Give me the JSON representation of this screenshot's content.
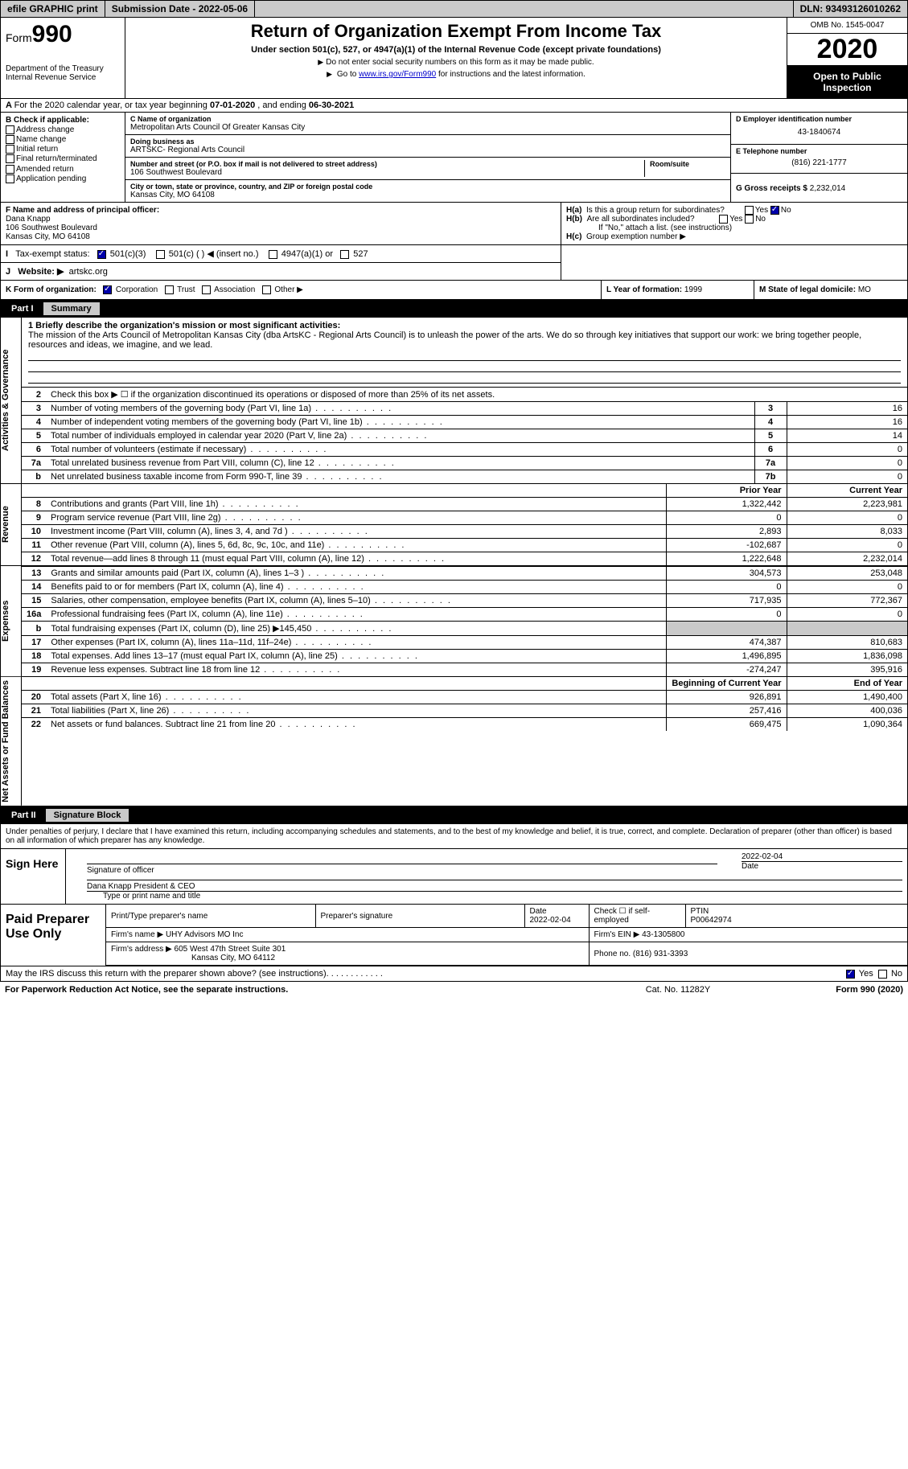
{
  "topbar": {
    "efile": "efile GRAPHIC print",
    "submission": "Submission Date - 2022-05-06",
    "dln": "DLN: 93493126010262"
  },
  "header": {
    "form_label": "Form",
    "form_num": "990",
    "dept": "Department of the Treasury\nInternal Revenue Service",
    "title": "Return of Organization Exempt From Income Tax",
    "sub": "Under section 501(c), 527, or 4947(a)(1) of the Internal Revenue Code (except private foundations)",
    "note1": "Do not enter social security numbers on this form as it may be made public.",
    "note2_pre": "Go to ",
    "note2_link": "www.irs.gov/Form990",
    "note2_post": " for instructions and the latest information.",
    "omb": "OMB No. 1545-0047",
    "year": "2020",
    "inspect": "Open to Public Inspection"
  },
  "line_a": {
    "text_pre": "For the 2020 calendar year, or tax year beginning ",
    "begin": "07-01-2020",
    "mid": " , and ending ",
    "end": "06-30-2021"
  },
  "col_b": {
    "hdr": "B Check if applicable:",
    "items": [
      "Address change",
      "Name change",
      "Initial return",
      "Final return/terminated",
      "Amended return",
      "Application pending"
    ]
  },
  "col_c": {
    "name_lbl": "C Name of organization",
    "name": "Metropolitan Arts Council Of Greater Kansas City",
    "dba_lbl": "Doing business as",
    "dba": "ARTSKC- Regional Arts Council",
    "addr_lbl": "Number and street (or P.O. box if mail is not delivered to street address)",
    "room_lbl": "Room/suite",
    "addr": "106 Southwest Boulevard",
    "city_lbl": "City or town, state or province, country, and ZIP or foreign postal code",
    "city": "Kansas City, MO  64108"
  },
  "col_d": {
    "ein_lbl": "D Employer identification number",
    "ein": "43-1840674",
    "tel_lbl": "E Telephone number",
    "tel": "(816) 221-1777",
    "gross_lbl": "G Gross receipts $",
    "gross": "2,232,014"
  },
  "section_f": {
    "lbl": "F Name and address of principal officer:",
    "name": "Dana Knapp",
    "addr": "106 Southwest Boulevard",
    "city": "Kansas City, MO  64108"
  },
  "section_h": {
    "ha": "Is this a group return for subordinates?",
    "hb": "Are all subordinates included?",
    "hb_note": "If \"No,\" attach a list. (see instructions)",
    "hc": "Group exemption number ▶"
  },
  "row_i": {
    "lbl": "Tax-exempt status:",
    "opt1": "501(c)(3)",
    "opt2": "501(c) (  ) ◀ (insert no.)",
    "opt3": "4947(a)(1) or",
    "opt4": "527"
  },
  "row_j": {
    "lbl": "Website: ▶",
    "val": "artskc.org"
  },
  "row_k": {
    "lbl": "K Form of organization:",
    "opts": [
      "Corporation",
      "Trust",
      "Association",
      "Other ▶"
    ]
  },
  "row_l": {
    "lbl": "L Year of formation:",
    "val": "1999"
  },
  "row_m": {
    "lbl": "M State of legal domicile:",
    "val": "MO"
  },
  "parts": {
    "p1": "Part I",
    "p1t": "Summary",
    "p2": "Part II",
    "p2t": "Signature Block"
  },
  "vtabs": {
    "gov": "Activities & Governance",
    "rev": "Revenue",
    "exp": "Expenses",
    "net": "Net Assets or Fund Balances"
  },
  "mission": {
    "lbl": "1  Briefly describe the organization's mission or most significant activities:",
    "text": "The mission of the Arts Council of Metropolitan Kansas City (dba ArtsKC - Regional Arts Council) is to unleash the power of the arts. We do so through key initiatives that support our work: we bring together people, resources and ideas, we imagine, and we lead."
  },
  "gov_rows": [
    {
      "n": "2",
      "t": "Check this box ▶ ☐  if the organization discontinued its operations or disposed of more than 25% of its net assets."
    },
    {
      "n": "3",
      "t": "Number of voting members of the governing body (Part VI, line 1a)",
      "box": "3",
      "v": "16"
    },
    {
      "n": "4",
      "t": "Number of independent voting members of the governing body (Part VI, line 1b)",
      "box": "4",
      "v": "16"
    },
    {
      "n": "5",
      "t": "Total number of individuals employed in calendar year 2020 (Part V, line 2a)",
      "box": "5",
      "v": "14"
    },
    {
      "n": "6",
      "t": "Total number of volunteers (estimate if necessary)",
      "box": "6",
      "v": "0"
    },
    {
      "n": "7a",
      "t": "Total unrelated business revenue from Part VIII, column (C), line 12",
      "box": "7a",
      "v": "0"
    },
    {
      "n": "b",
      "t": "Net unrelated business taxable income from Form 990-T, line 39",
      "box": "7b",
      "v": "0"
    }
  ],
  "fin_hdr": {
    "py": "Prior Year",
    "cy": "Current Year"
  },
  "rev_rows": [
    {
      "n": "8",
      "t": "Contributions and grants (Part VIII, line 1h)",
      "py": "1,322,442",
      "cy": "2,223,981"
    },
    {
      "n": "9",
      "t": "Program service revenue (Part VIII, line 2g)",
      "py": "0",
      "cy": "0"
    },
    {
      "n": "10",
      "t": "Investment income (Part VIII, column (A), lines 3, 4, and 7d )",
      "py": "2,893",
      "cy": "8,033"
    },
    {
      "n": "11",
      "t": "Other revenue (Part VIII, column (A), lines 5, 6d, 8c, 9c, 10c, and 11e)",
      "py": "-102,687",
      "cy": "0"
    },
    {
      "n": "12",
      "t": "Total revenue—add lines 8 through 11 (must equal Part VIII, column (A), line 12)",
      "py": "1,222,648",
      "cy": "2,232,014"
    }
  ],
  "exp_rows": [
    {
      "n": "13",
      "t": "Grants and similar amounts paid (Part IX, column (A), lines 1–3 )",
      "py": "304,573",
      "cy": "253,048"
    },
    {
      "n": "14",
      "t": "Benefits paid to or for members (Part IX, column (A), line 4)",
      "py": "0",
      "cy": "0"
    },
    {
      "n": "15",
      "t": "Salaries, other compensation, employee benefits (Part IX, column (A), lines 5–10)",
      "py": "717,935",
      "cy": "772,367"
    },
    {
      "n": "16a",
      "t": "Professional fundraising fees (Part IX, column (A), line 11e)",
      "py": "0",
      "cy": "0"
    },
    {
      "n": "b",
      "t": "Total fundraising expenses (Part IX, column (D), line 25) ▶145,450",
      "py": "",
      "cy": "",
      "shade": true
    },
    {
      "n": "17",
      "t": "Other expenses (Part IX, column (A), lines 11a–11d, 11f–24e)",
      "py": "474,387",
      "cy": "810,683"
    },
    {
      "n": "18",
      "t": "Total expenses. Add lines 13–17 (must equal Part IX, column (A), line 25)",
      "py": "1,496,895",
      "cy": "1,836,098"
    },
    {
      "n": "19",
      "t": "Revenue less expenses. Subtract line 18 from line 12",
      "py": "-274,247",
      "cy": "395,916"
    }
  ],
  "net_hdr": {
    "by": "Beginning of Current Year",
    "ey": "End of Year"
  },
  "net_rows": [
    {
      "n": "20",
      "t": "Total assets (Part X, line 16)",
      "py": "926,891",
      "cy": "1,490,400"
    },
    {
      "n": "21",
      "t": "Total liabilities (Part X, line 26)",
      "py": "257,416",
      "cy": "400,036"
    },
    {
      "n": "22",
      "t": "Net assets or fund balances. Subtract line 21 from line 20",
      "py": "669,475",
      "cy": "1,090,364"
    }
  ],
  "sig": {
    "decl": "Under penalties of perjury, I declare that I have examined this return, including accompanying schedules and statements, and to the best of my knowledge and belief, it is true, correct, and complete. Declaration of preparer (other than officer) is based on all information of which preparer has any knowledge.",
    "sign_here": "Sign Here",
    "sig_officer": "Signature of officer",
    "date": "Date",
    "date_val": "2022-02-04",
    "name": "Dana Knapp  President & CEO",
    "name_lbl": "Type or print name and title"
  },
  "prep": {
    "hdr": "Paid Preparer Use Only",
    "r1": {
      "c1": "Print/Type preparer's name",
      "c2": "Preparer's signature",
      "c3": "Date",
      "c3v": "2022-02-04",
      "c4": "Check ☐ if self-employed",
      "c5": "PTIN",
      "c5v": "P00642974"
    },
    "r2": {
      "c1": "Firm's name   ▶",
      "c1v": "UHY Advisors MO Inc",
      "c2": "Firm's EIN ▶",
      "c2v": "43-1305800"
    },
    "r3": {
      "c1": "Firm's address ▶",
      "c1v": "605 West 47th Street Suite 301",
      "c1v2": "Kansas City, MO  64112",
      "c2": "Phone no.",
      "c2v": "(816) 931-3393"
    }
  },
  "footer": {
    "q": "May the IRS discuss this return with the preparer shown above? (see instructions)",
    "yes": "Yes",
    "no": "No"
  },
  "bottom": {
    "c1": "For Paperwork Reduction Act Notice, see the separate instructions.",
    "c2": "Cat. No. 11282Y",
    "c3": "Form 990 (2020)"
  }
}
